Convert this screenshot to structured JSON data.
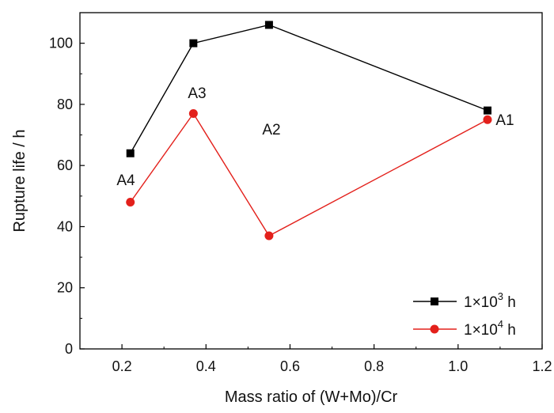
{
  "chart_data": {
    "type": "line",
    "xlabel": "Mass ratio of (W+Mo)/Cr",
    "ylabel": "Rupture life / h",
    "xlim": [
      0.1,
      1.2
    ],
    "ylim": [
      0,
      110
    ],
    "xticks": [
      "0.2",
      "0.4",
      "0.6",
      "0.8",
      "1.0",
      "1.2"
    ],
    "yticks": [
      "0",
      "20",
      "40",
      "60",
      "80",
      "100"
    ],
    "x": [
      0.22,
      0.37,
      0.55,
      1.07
    ],
    "series": [
      {
        "name": "1×10³ h",
        "base": "1×10",
        "exp": "3",
        "unit": " h",
        "color": "#000000",
        "marker": "square",
        "values": [
          64,
          100,
          106,
          78
        ]
      },
      {
        "name": "1×10⁴ h",
        "base": "1×10",
        "exp": "4",
        "unit": " h",
        "color": "#e3201b",
        "marker": "circle",
        "values": [
          48,
          77,
          37,
          75
        ]
      }
    ],
    "annotations": [
      "A4",
      "A3",
      "A2",
      "A1"
    ],
    "legend_position": "bottom-right",
    "grid": false
  }
}
